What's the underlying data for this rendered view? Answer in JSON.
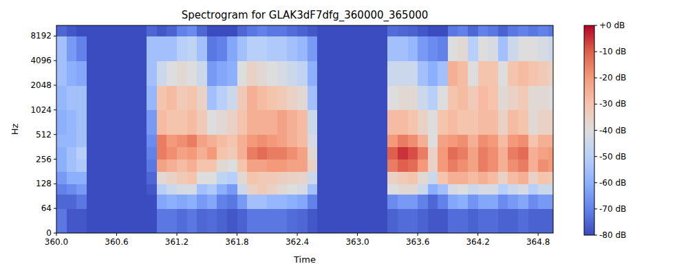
{
  "chart_data": {
    "type": "heatmap",
    "title": "Spectrogram for GLAK3dF7dfg_360000_365000",
    "x_label": "Time",
    "y_label": "Hz",
    "log": "y",
    "xlim": [
      360,
      364.95
    ],
    "ylim": [
      0,
      11025
    ],
    "xticks": [
      {
        "value": 360,
        "label": "360.0"
      },
      360.6,
      361.2,
      361.8,
      362.4,
      {
        "value": 363,
        "label": "363.0"
      },
      363.6,
      364.2,
      364.8
    ],
    "yticks": [
      0,
      64,
      128,
      256,
      512,
      1024,
      2048,
      4096,
      8192
    ],
    "x_bins": [
      360.0,
      360.1,
      360.2,
      360.3,
      360.4,
      360.5,
      360.6,
      360.7,
      360.8,
      360.9,
      361.0,
      361.1,
      361.2,
      361.3,
      361.4,
      361.5,
      361.6,
      361.7,
      361.8,
      361.9,
      362.0,
      362.1,
      362.2,
      362.3,
      362.4,
      362.5,
      362.6,
      362.7,
      362.8,
      362.9,
      363.0,
      363.1,
      363.2,
      363.3,
      363.4,
      363.5,
      363.6,
      363.7,
      363.8,
      363.9,
      364.0,
      364.1,
      364.2,
      364.3,
      364.4,
      364.5,
      364.6,
      364.7,
      364.8,
      364.9,
      364.95
    ],
    "y_bins": [
      0,
      64,
      96,
      128,
      181,
      256,
      362,
      512,
      1024,
      2048,
      4096,
      8192,
      11025
    ],
    "cells": [
      [
        -72,
        -78,
        -78,
        -80,
        -80,
        -80,
        -80,
        -80,
        -80,
        -80,
        -72,
        -72,
        -74,
        -72,
        -75,
        -74,
        -76,
        -78,
        -76,
        -72,
        -72,
        -72,
        -72,
        -74,
        -75,
        -78,
        -80,
        -80,
        -80,
        -80,
        -80,
        -80,
        -80,
        -76,
        -74,
        -74,
        -76,
        -78,
        -78,
        -74,
        -74,
        -76,
        -74,
        -74,
        -76,
        -76,
        -74,
        -76,
        -76,
        -76
      ],
      [
        -75,
        -75,
        -72,
        -80,
        -80,
        -80,
        -80,
        -80,
        -80,
        -80,
        -62,
        -60,
        -62,
        -60,
        -65,
        -62,
        -70,
        -72,
        -65,
        -55,
        -55,
        -58,
        -58,
        -60,
        -62,
        -70,
        -80,
        -80,
        -80,
        -80,
        -80,
        -80,
        -80,
        -68,
        -65,
        -65,
        -70,
        -75,
        -70,
        -62,
        -60,
        -66,
        -62,
        -62,
        -68,
        -65,
        -62,
        -68,
        -65,
        -65
      ],
      [
        -70,
        -68,
        -65,
        -80,
        -80,
        -80,
        -80,
        -80,
        -80,
        -78,
        -50,
        -45,
        -42,
        -42,
        -55,
        -52,
        -60,
        -65,
        -45,
        -35,
        -32,
        -35,
        -38,
        -40,
        -42,
        -55,
        -80,
        -80,
        -80,
        -80,
        -80,
        -80,
        -80,
        -40,
        -38,
        -38,
        -45,
        -60,
        -55,
        -42,
        -40,
        -45,
        -42,
        -42,
        -50,
        -45,
        -42,
        -50,
        -45,
        -45
      ],
      [
        -65,
        -60,
        -60,
        -80,
        -80,
        -80,
        -80,
        -80,
        -80,
        -75,
        -38,
        -35,
        -32,
        -30,
        -40,
        -40,
        -48,
        -50,
        -38,
        -30,
        -32,
        -32,
        -34,
        -35,
        -36,
        -45,
        -80,
        -80,
        -80,
        -80,
        -80,
        -80,
        -80,
        -35,
        -32,
        -30,
        -38,
        -45,
        -30,
        -25,
        -25,
        -28,
        -25,
        -28,
        -35,
        -28,
        -25,
        -35,
        -30,
        -32
      ],
      [
        -60,
        -55,
        -52,
        -80,
        -80,
        -80,
        -80,
        -80,
        -80,
        -72,
        -22,
        -25,
        -28,
        -25,
        -30,
        -30,
        -38,
        -40,
        -30,
        -22,
        -22,
        -20,
        -20,
        -22,
        -22,
        -35,
        -80,
        -80,
        -80,
        -80,
        -80,
        -80,
        -80,
        -15,
        -10,
        -12,
        -20,
        -35,
        -20,
        -15,
        -18,
        -22,
        -15,
        -18,
        -25,
        -18,
        -15,
        -25,
        -18,
        -20
      ],
      [
        -60,
        -55,
        -50,
        -80,
        -80,
        -80,
        -80,
        -80,
        -80,
        -70,
        -15,
        -18,
        -22,
        -20,
        -25,
        -20,
        -30,
        -32,
        -25,
        -15,
        -12,
        -15,
        -15,
        -18,
        -22,
        -38,
        -80,
        -80,
        -80,
        -80,
        -80,
        -80,
        -80,
        -10,
        -5,
        -8,
        -15,
        -35,
        -20,
        -12,
        -15,
        -22,
        -15,
        -18,
        -25,
        -15,
        -12,
        -25,
        -22,
        -20
      ],
      [
        -58,
        -58,
        -55,
        -80,
        -80,
        -80,
        -80,
        -80,
        -80,
        -68,
        -15,
        -20,
        -18,
        -15,
        -22,
        -25,
        -28,
        -30,
        -25,
        -20,
        -18,
        -20,
        -22,
        -25,
        -28,
        -42,
        -80,
        -80,
        -80,
        -80,
        -80,
        -80,
        -80,
        -20,
        -15,
        -18,
        -25,
        -40,
        -22,
        -20,
        -18,
        -25,
        -18,
        -20,
        -28,
        -20,
        -18,
        -30,
        -25,
        -25
      ],
      [
        -60,
        -58,
        -55,
        -80,
        -80,
        -80,
        -80,
        -80,
        -80,
        -65,
        -28,
        -30,
        -30,
        -28,
        -32,
        -40,
        -38,
        -35,
        -30,
        -25,
        -25,
        -25,
        -22,
        -25,
        -28,
        -45,
        -80,
        -80,
        -80,
        -80,
        -80,
        -80,
        -80,
        -28,
        -28,
        -30,
        -35,
        -40,
        -30,
        -28,
        -30,
        -30,
        -28,
        -28,
        -35,
        -28,
        -30,
        -38,
        -35,
        -35
      ],
      [
        -58,
        -55,
        -55,
        -80,
        -80,
        -80,
        -80,
        -80,
        -80,
        -58,
        -30,
        -28,
        -32,
        -30,
        -35,
        -55,
        -50,
        -45,
        -32,
        -25,
        -28,
        -30,
        -32,
        -35,
        -38,
        -55,
        -80,
        -80,
        -80,
        -80,
        -80,
        -80,
        -80,
        -40,
        -38,
        -38,
        -45,
        -50,
        -40,
        -30,
        -28,
        -32,
        -28,
        -30,
        -38,
        -35,
        -32,
        -38,
        -38,
        -40
      ],
      [
        -55,
        -60,
        -62,
        -80,
        -80,
        -80,
        -80,
        -80,
        -80,
        -55,
        -45,
        -40,
        -38,
        -40,
        -45,
        -65,
        -62,
        -60,
        -40,
        -35,
        -38,
        -40,
        -42,
        -45,
        -48,
        -60,
        -80,
        -80,
        -80,
        -80,
        -80,
        -80,
        -80,
        -45,
        -45,
        -45,
        -55,
        -60,
        -55,
        -25,
        -28,
        -40,
        -30,
        -30,
        -40,
        -30,
        -28,
        -30,
        -32,
        -35
      ],
      [
        -55,
        -65,
        -70,
        -80,
        -80,
        -80,
        -80,
        -80,
        -80,
        -55,
        -55,
        -55,
        -50,
        -48,
        -55,
        -72,
        -70,
        -62,
        -55,
        -50,
        -50,
        -52,
        -52,
        -55,
        -58,
        -65,
        -80,
        -80,
        -80,
        -80,
        -80,
        -80,
        -80,
        -55,
        -55,
        -58,
        -65,
        -68,
        -70,
        -40,
        -38,
        -50,
        -40,
        -42,
        -55,
        -45,
        -40,
        -40,
        -42,
        -45
      ],
      [
        -75,
        -78,
        -80,
        -80,
        -80,
        -80,
        -80,
        -80,
        -80,
        -75,
        -78,
        -76,
        -70,
        -68,
        -75,
        -80,
        -80,
        -80,
        -75,
        -72,
        -70,
        -72,
        -72,
        -74,
        -76,
        -78,
        -80,
        -80,
        -80,
        -80,
        -80,
        -80,
        -80,
        -74,
        -75,
        -76,
        -78,
        -80,
        -80,
        -72,
        -70,
        -75,
        -70,
        -72,
        -76,
        -72,
        -70,
        -72,
        -70,
        -72
      ]
    ],
    "colorbar_range": [
      -80,
      0
    ],
    "colorbar_ticks": [
      {
        "value": 0,
        "label": "+0 dB"
      },
      {
        "value": -10,
        "label": "-10 dB"
      },
      {
        "value": -20,
        "label": "-20 dB"
      },
      {
        "value": -30,
        "label": "-30 dB"
      },
      {
        "value": -40,
        "label": "-40 dB"
      },
      {
        "value": -50,
        "label": "-50 dB"
      },
      {
        "value": -60,
        "label": "-60 dB"
      },
      {
        "value": -70,
        "label": "-70 dB"
      },
      {
        "value": -80,
        "label": "-80 dB"
      }
    ]
  }
}
